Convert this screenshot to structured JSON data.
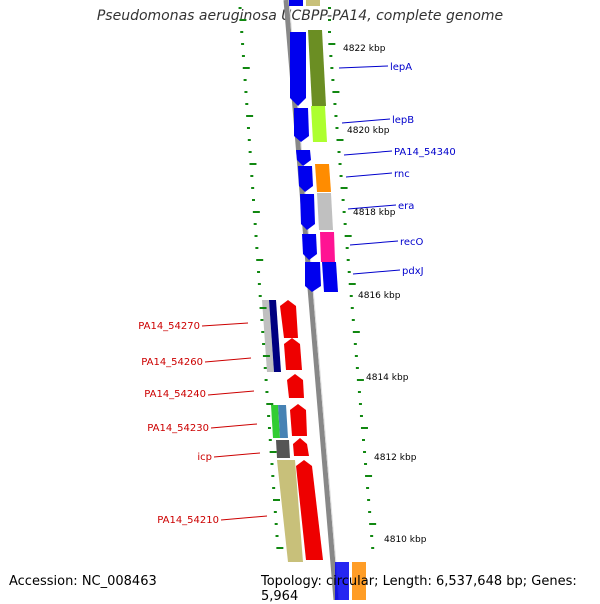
{
  "title": "Pseudomonas aeruginosa UCBPP-PA14, complete genome",
  "accession_label": "Accession: NC_008463",
  "summary_label": "Topology: circular; Length: 6,537,648 bp; Genes: 5,964",
  "colors": {
    "forward_label": "#0000cc",
    "reverse_label": "#cc0000",
    "backbone": "#888888",
    "tick": "#118811"
  },
  "kbp_ticks": [
    "4822 kbp",
    "4820 kbp",
    "4818 kbp",
    "4816 kbp",
    "4814 kbp",
    "4812 kbp",
    "4810 kbp"
  ],
  "genes_forward": [
    {
      "name": "lepA",
      "color": "#0000ee"
    },
    {
      "name": "lepB",
      "color": "#0000ee"
    },
    {
      "name": "PA14_54340",
      "color": "#0000ee"
    },
    {
      "name": "rnc",
      "color": "#0000ee"
    },
    {
      "name": "era",
      "color": "#0000ee"
    },
    {
      "name": "recO",
      "color": "#0000ee"
    },
    {
      "name": "pdxJ",
      "color": "#0000ee"
    }
  ],
  "genes_reverse": [
    {
      "name": "PA14_54270",
      "color": "#ee0000"
    },
    {
      "name": "PA14_54260",
      "color": "#ee0000"
    },
    {
      "name": "PA14_54240",
      "color": "#ee0000"
    },
    {
      "name": "PA14_54230",
      "color": "#ee0000"
    },
    {
      "name": "icp",
      "color": "#ee0000"
    },
    {
      "name": "PA14_54210",
      "color": "#ee0000"
    }
  ]
}
